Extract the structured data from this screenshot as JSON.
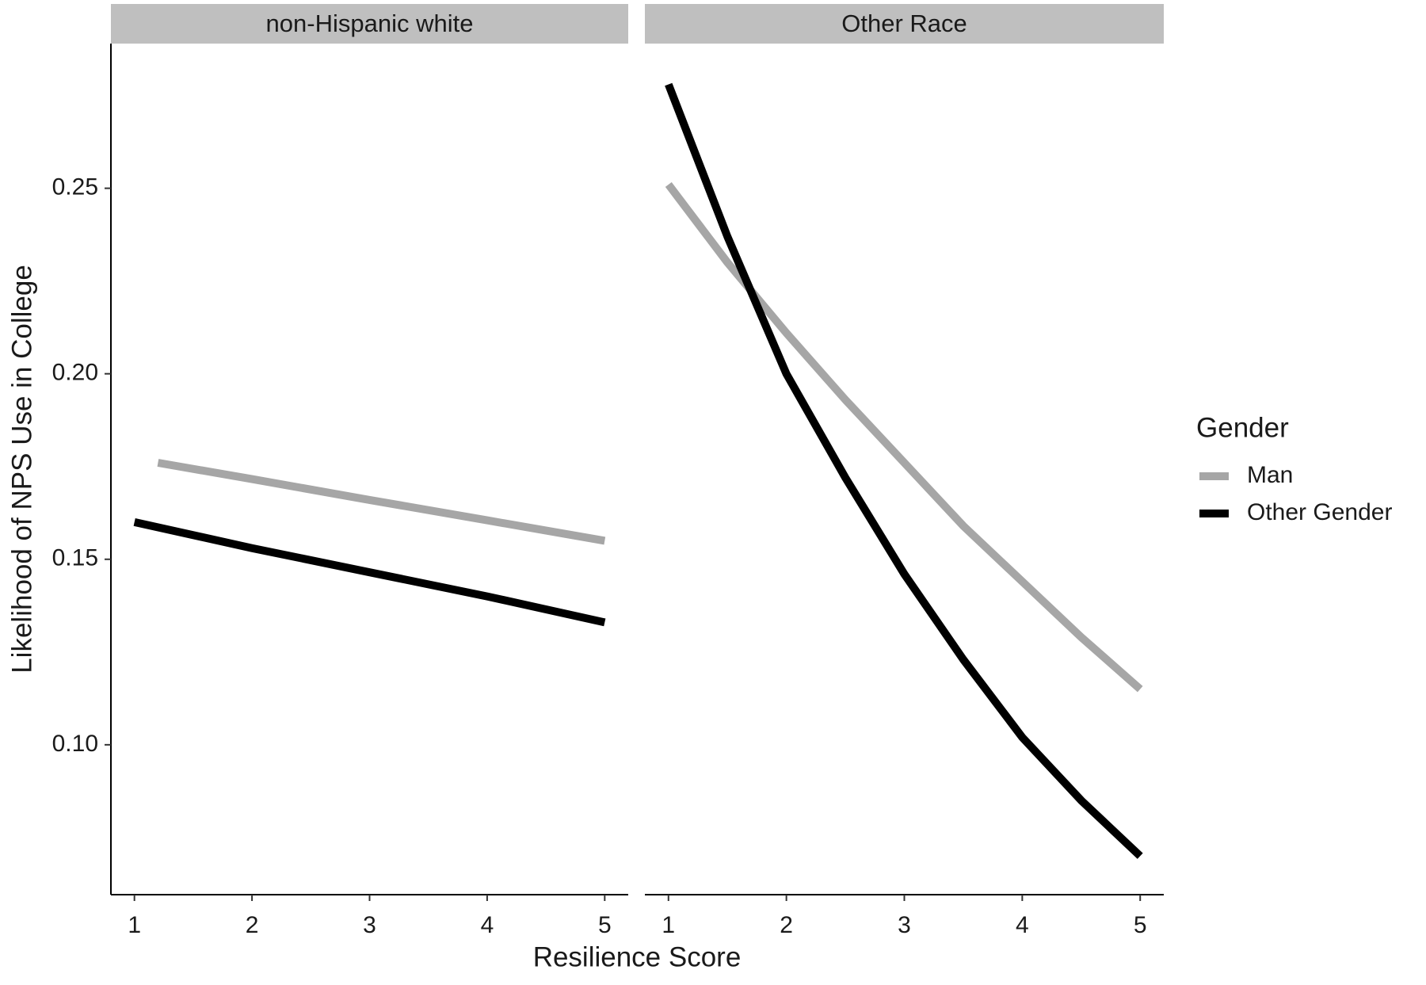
{
  "chart_data": {
    "type": "line",
    "x_label": "Resilience Score",
    "y_label": "Likelihood of NPS Use in College",
    "xlim": [
      0.8,
      5.2
    ],
    "xticks": [
      1,
      2,
      3,
      4,
      5
    ],
    "ylim": [
      0.0596,
      0.289
    ],
    "yticks": [
      {
        "value": 0.1,
        "label": "0.10"
      },
      0.15,
      {
        "value": 0.2,
        "label": "0.20"
      },
      0.25
    ],
    "legend": {
      "title": "Gender",
      "position": "right",
      "entries": [
        {
          "name": "Man",
          "color": "#a6a6a6"
        },
        {
          "name": "Other Gender",
          "color": "#000000"
        }
      ]
    },
    "facets": [
      {
        "title": "non-Hispanic white",
        "series": [
          {
            "x": [
              1.2,
              2,
              3,
              4,
              5
            ],
            "values": [
              0.176,
              0.1716,
              0.166,
              0.1605,
              0.155
            ]
          },
          {
            "x": [
              1,
              2,
              3,
              4,
              5
            ],
            "values": [
              0.16,
              0.153,
              0.1465,
              0.14,
              0.133
            ]
          }
        ]
      },
      {
        "title": "Other Race",
        "series": [
          {
            "x": [
              1,
              1.5,
              2,
              2.5,
              3,
              3.5,
              4,
              4.5,
              5
            ],
            "values": [
              0.251,
              0.23,
              0.211,
              0.193,
              0.176,
              0.159,
              0.144,
              0.129,
              0.115
            ]
          },
          {
            "x": [
              1,
              1.5,
              2,
              2.5,
              3,
              3.5,
              4,
              4.5,
              5
            ],
            "values": [
              0.278,
              0.237,
              0.2,
              0.172,
              0.146,
              0.123,
              0.102,
              0.085,
              0.07
            ]
          }
        ]
      }
    ]
  }
}
